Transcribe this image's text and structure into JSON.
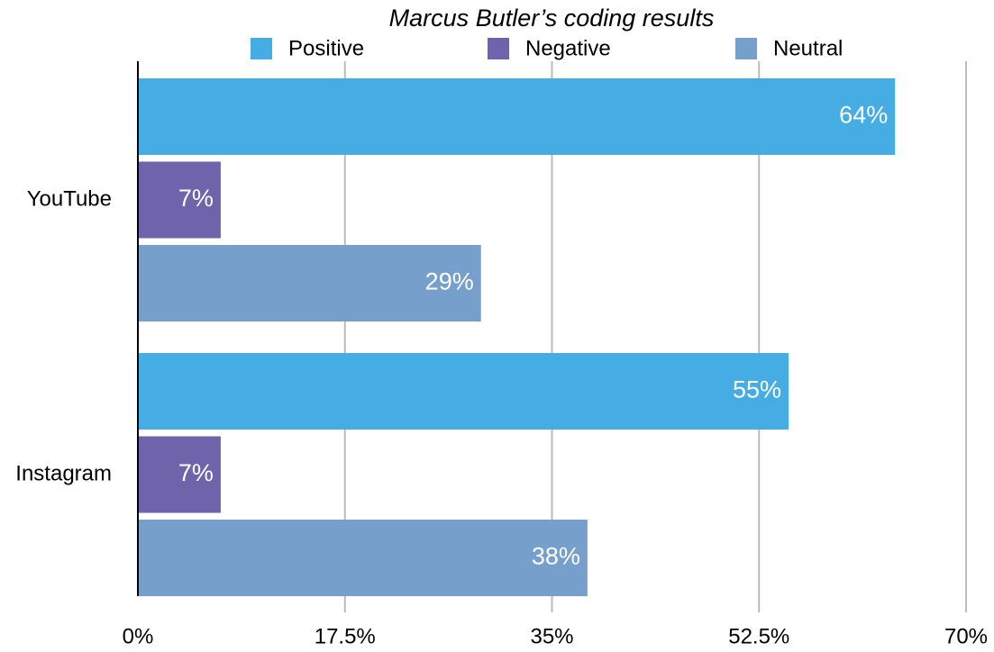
{
  "chart_data": {
    "type": "hbar",
    "title": "Marcus Butler’s coding results",
    "categories": [
      "YouTube",
      "Instagram"
    ],
    "series": [
      {
        "name": "Positive",
        "color": "#45ace4",
        "values": [
          64,
          55
        ],
        "value_labels": [
          "64%",
          "55%"
        ]
      },
      {
        "name": "Negative",
        "color": "#6f63ac",
        "values": [
          7,
          7
        ],
        "value_labels": [
          "7%",
          "7%"
        ]
      },
      {
        "name": "Neutral",
        "color": "#76a0cb",
        "values": [
          29,
          38
        ],
        "value_labels": [
          "29%",
          "38%"
        ]
      }
    ],
    "xlim": [
      0,
      70
    ],
    "xticks": [
      {
        "value": 0,
        "label": "0%"
      },
      {
        "value": 17.5,
        "label": "17.5%"
      },
      {
        "value": 35,
        "label": "35%"
      },
      {
        "value": 52.5,
        "label": "52.5%"
      },
      {
        "value": 70,
        "label": "70%"
      }
    ],
    "grid": true,
    "legend": "top"
  }
}
